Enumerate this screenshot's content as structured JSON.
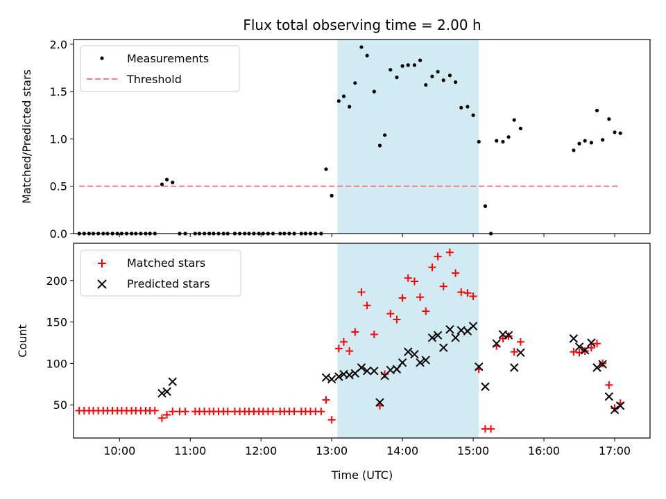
{
  "title": "Flux total observing time = 2.00 h",
  "colors": {
    "measurements": "#000000",
    "threshold": "#f08080",
    "matched": "#ff0000",
    "predicted": "#000000",
    "span": "#add8e6"
  },
  "chart_data": [
    {
      "type": "scatter",
      "panel": "top",
      "ylabel": "Matched/Predicted stars",
      "ylim": [
        0,
        2.05
      ],
      "yticks": [
        0.0,
        0.5,
        1.0,
        1.5,
        2.0
      ],
      "ytick_labels": [
        "0.0",
        "0.5",
        "1.0",
        "1.5",
        "2.0"
      ],
      "xlim": [
        9.35,
        17.5
      ],
      "highlight_span": [
        13.08,
        15.08
      ],
      "legend": {
        "position": "top-left",
        "entries": [
          "Measurements",
          "Threshold"
        ]
      },
      "series": [
        {
          "name": "Measurements",
          "marker": "dot",
          "points": [
            [
              9.43,
              0
            ],
            [
              9.5,
              0
            ],
            [
              9.57,
              0
            ],
            [
              9.63,
              0
            ],
            [
              9.7,
              0
            ],
            [
              9.77,
              0
            ],
            [
              9.83,
              0
            ],
            [
              9.9,
              0
            ],
            [
              9.97,
              0
            ],
            [
              10.03,
              0
            ],
            [
              10.1,
              0
            ],
            [
              10.17,
              0
            ],
            [
              10.23,
              0
            ],
            [
              10.3,
              0
            ],
            [
              10.37,
              0
            ],
            [
              10.43,
              0
            ],
            [
              10.5,
              0
            ],
            [
              10.6,
              0.52
            ],
            [
              10.67,
              0.57
            ],
            [
              10.75,
              0.54
            ],
            [
              10.85,
              0
            ],
            [
              10.93,
              0
            ],
            [
              11.07,
              0
            ],
            [
              11.13,
              0
            ],
            [
              11.2,
              0
            ],
            [
              11.27,
              0
            ],
            [
              11.33,
              0
            ],
            [
              11.4,
              0
            ],
            [
              11.47,
              0
            ],
            [
              11.53,
              0
            ],
            [
              11.63,
              0
            ],
            [
              11.7,
              0
            ],
            [
              11.77,
              0
            ],
            [
              11.83,
              0
            ],
            [
              11.9,
              0
            ],
            [
              11.97,
              0
            ],
            [
              12.03,
              0
            ],
            [
              12.1,
              0
            ],
            [
              12.17,
              0
            ],
            [
              12.27,
              0
            ],
            [
              12.33,
              0
            ],
            [
              12.4,
              0
            ],
            [
              12.47,
              0
            ],
            [
              12.57,
              0
            ],
            [
              12.63,
              0
            ],
            [
              12.7,
              0
            ],
            [
              12.77,
              0
            ],
            [
              12.85,
              0
            ],
            [
              12.92,
              0.68
            ],
            [
              13.0,
              0.4
            ],
            [
              13.1,
              1.4
            ],
            [
              13.17,
              1.45
            ],
            [
              13.25,
              1.34
            ],
            [
              13.33,
              1.59
            ],
            [
              13.42,
              1.97
            ],
            [
              13.5,
              1.88
            ],
            [
              13.6,
              1.5
            ],
            [
              13.68,
              0.93
            ],
            [
              13.75,
              1.04
            ],
            [
              13.83,
              1.73
            ],
            [
              13.92,
              1.65
            ],
            [
              14.0,
              1.77
            ],
            [
              14.08,
              1.78
            ],
            [
              14.17,
              1.78
            ],
            [
              14.25,
              1.83
            ],
            [
              14.33,
              1.57
            ],
            [
              14.42,
              1.66
            ],
            [
              14.5,
              1.71
            ],
            [
              14.58,
              1.62
            ],
            [
              14.67,
              1.67
            ],
            [
              14.75,
              1.6
            ],
            [
              14.83,
              1.33
            ],
            [
              14.92,
              1.34
            ],
            [
              15.0,
              1.25
            ],
            [
              15.08,
              0.97
            ],
            [
              15.17,
              0.29
            ],
            [
              15.25,
              0.0
            ],
            [
              15.33,
              0.98
            ],
            [
              15.42,
              0.97
            ],
            [
              15.5,
              1.02
            ],
            [
              15.58,
              1.2
            ],
            [
              15.67,
              1.11
            ],
            [
              16.42,
              0.88
            ],
            [
              16.5,
              0.95
            ],
            [
              16.58,
              0.98
            ],
            [
              16.67,
              0.96
            ],
            [
              16.75,
              1.3
            ],
            [
              16.83,
              0.99
            ],
            [
              16.92,
              1.21
            ],
            [
              17.0,
              1.07
            ],
            [
              17.08,
              1.06
            ]
          ]
        },
        {
          "name": "Threshold",
          "style": "dashed-line",
          "points": [
            [
              9.43,
              0.5
            ],
            [
              17.08,
              0.5
            ]
          ]
        }
      ]
    },
    {
      "type": "scatter",
      "panel": "bottom",
      "ylabel": "Count",
      "xlabel": "Time (UTC)",
      "ylim": [
        10,
        245
      ],
      "yticks": [
        50,
        100,
        150,
        200
      ],
      "ytick_labels": [
        "50",
        "100",
        "150",
        "200"
      ],
      "xlim": [
        9.35,
        17.5
      ],
      "xticks": [
        10,
        11,
        12,
        13,
        14,
        15,
        16,
        17
      ],
      "xtick_labels": [
        "10:00",
        "11:00",
        "12:00",
        "13:00",
        "14:00",
        "15:00",
        "16:00",
        "17:00"
      ],
      "highlight_span": [
        13.08,
        15.08
      ],
      "legend": {
        "position": "top-left",
        "entries": [
          "Matched stars",
          "Predicted stars"
        ]
      },
      "series": [
        {
          "name": "Matched stars",
          "marker": "plus",
          "points": [
            [
              9.43,
              43
            ],
            [
              9.5,
              43
            ],
            [
              9.57,
              43
            ],
            [
              9.63,
              43
            ],
            [
              9.7,
              43
            ],
            [
              9.77,
              43
            ],
            [
              9.83,
              43
            ],
            [
              9.9,
              43
            ],
            [
              9.97,
              43
            ],
            [
              10.03,
              43
            ],
            [
              10.1,
              43
            ],
            [
              10.17,
              43
            ],
            [
              10.23,
              43
            ],
            [
              10.3,
              43
            ],
            [
              10.37,
              43
            ],
            [
              10.43,
              43
            ],
            [
              10.5,
              43
            ],
            [
              10.6,
              34
            ],
            [
              10.67,
              38
            ],
            [
              10.75,
              42
            ],
            [
              10.85,
              42
            ],
            [
              10.93,
              42
            ],
            [
              11.07,
              42
            ],
            [
              11.13,
              42
            ],
            [
              11.2,
              42
            ],
            [
              11.27,
              42
            ],
            [
              11.33,
              42
            ],
            [
              11.4,
              42
            ],
            [
              11.47,
              42
            ],
            [
              11.53,
              42
            ],
            [
              11.63,
              42
            ],
            [
              11.7,
              42
            ],
            [
              11.77,
              42
            ],
            [
              11.83,
              42
            ],
            [
              11.9,
              42
            ],
            [
              11.97,
              42
            ],
            [
              12.03,
              42
            ],
            [
              12.1,
              42
            ],
            [
              12.17,
              42
            ],
            [
              12.27,
              42
            ],
            [
              12.33,
              42
            ],
            [
              12.4,
              42
            ],
            [
              12.47,
              42
            ],
            [
              12.57,
              42
            ],
            [
              12.63,
              42
            ],
            [
              12.7,
              42
            ],
            [
              12.77,
              42
            ],
            [
              12.85,
              42
            ],
            [
              12.92,
              56
            ],
            [
              13.0,
              32
            ],
            [
              13.1,
              118
            ],
            [
              13.17,
              126
            ],
            [
              13.25,
              115
            ],
            [
              13.33,
              138
            ],
            [
              13.42,
              186
            ],
            [
              13.5,
              170
            ],
            [
              13.6,
              135
            ],
            [
              13.68,
              49
            ],
            [
              13.75,
              87
            ],
            [
              13.83,
              160
            ],
            [
              13.92,
              153
            ],
            [
              14.0,
              179
            ],
            [
              14.08,
              203
            ],
            [
              14.17,
              199
            ],
            [
              14.25,
              180
            ],
            [
              14.33,
              163
            ],
            [
              14.42,
              216
            ],
            [
              14.5,
              229
            ],
            [
              14.58,
              193
            ],
            [
              14.67,
              234
            ],
            [
              14.75,
              209
            ],
            [
              14.83,
              186
            ],
            [
              14.92,
              185
            ],
            [
              15.0,
              181
            ],
            [
              15.08,
              93
            ],
            [
              15.17,
              21
            ],
            [
              15.25,
              21
            ],
            [
              15.33,
              121
            ],
            [
              15.42,
              130
            ],
            [
              15.5,
              133
            ],
            [
              15.58,
              114
            ],
            [
              15.67,
              126
            ],
            [
              16.42,
              114
            ],
            [
              16.5,
              113
            ],
            [
              16.58,
              115
            ],
            [
              16.67,
              119
            ],
            [
              16.75,
              124
            ],
            [
              16.83,
              100
            ],
            [
              16.92,
              74
            ],
            [
              17.0,
              46
            ],
            [
              17.08,
              52
            ]
          ]
        },
        {
          "name": "Predicted stars",
          "marker": "x",
          "points": [
            [
              10.6,
              64
            ],
            [
              10.67,
              66
            ],
            [
              10.75,
              78
            ],
            [
              12.92,
              83
            ],
            [
              13.0,
              81
            ],
            [
              13.1,
              84
            ],
            [
              13.17,
              87
            ],
            [
              13.25,
              86
            ],
            [
              13.33,
              88
            ],
            [
              13.42,
              95
            ],
            [
              13.5,
              91
            ],
            [
              13.6,
              91
            ],
            [
              13.68,
              53
            ],
            [
              13.75,
              85
            ],
            [
              13.83,
              92
            ],
            [
              13.92,
              93
            ],
            [
              14.0,
              101
            ],
            [
              14.08,
              114
            ],
            [
              14.17,
              111
            ],
            [
              14.25,
              101
            ],
            [
              14.33,
              104
            ],
            [
              14.42,
              131
            ],
            [
              14.5,
              134
            ],
            [
              14.58,
              119
            ],
            [
              14.67,
              141
            ],
            [
              14.75,
              131
            ],
            [
              14.83,
              140
            ],
            [
              14.92,
              139
            ],
            [
              15.0,
              145
            ],
            [
              15.08,
              96
            ],
            [
              15.17,
              72
            ],
            [
              15.33,
              124
            ],
            [
              15.42,
              135
            ],
            [
              15.5,
              134
            ],
            [
              15.58,
              95
            ],
            [
              15.67,
              113
            ],
            [
              16.42,
              130
            ],
            [
              16.5,
              120
            ],
            [
              16.58,
              116
            ],
            [
              16.67,
              125
            ],
            [
              16.75,
              95
            ],
            [
              16.83,
              99
            ],
            [
              16.92,
              60
            ],
            [
              17.0,
              44
            ],
            [
              17.08,
              49
            ]
          ]
        }
      ]
    }
  ]
}
